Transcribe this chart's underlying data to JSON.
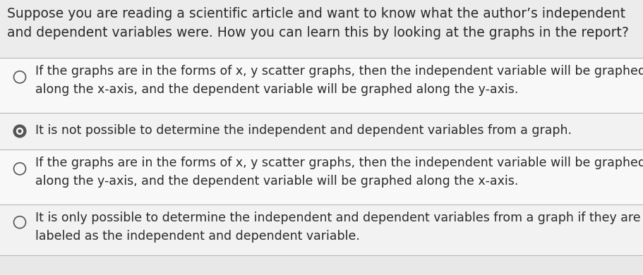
{
  "background_color": "#e8e8e8",
  "question_bg": "#ececec",
  "option_bg_alt": "#f2f2f2",
  "option_bg_white": "#f8f8f8",
  "question": "Suppose you are reading a scientific article and want to know what the author’s independent\nand dependent variables were. How you can learn this by looking at the graphs in the report?",
  "options": [
    {
      "text": "If the graphs are in the forms of x, y scatter graphs, then the independent variable will be graphed\nalong the x-axis, and the dependent variable will be graphed along the y-axis.",
      "selected": false
    },
    {
      "text": "It is not possible to determine the independent and dependent variables from a graph.",
      "selected": true
    },
    {
      "text": "If the graphs are in the forms of x, y scatter graphs, then the independent variable will be graphed\nalong the y-axis, and the dependent variable will be graphed along the x-axis.",
      "selected": false
    },
    {
      "text": "It is only possible to determine the independent and dependent variables from a graph if they are\nlabeled as the independent and dependent variable.",
      "selected": false
    }
  ],
  "question_fontsize": 13.5,
  "option_fontsize": 12.5,
  "text_color": "#2a2a2a",
  "divider_color": "#b8b8b8",
  "radio_outer_color": "#555555",
  "radio_selected_fill": "#555555"
}
